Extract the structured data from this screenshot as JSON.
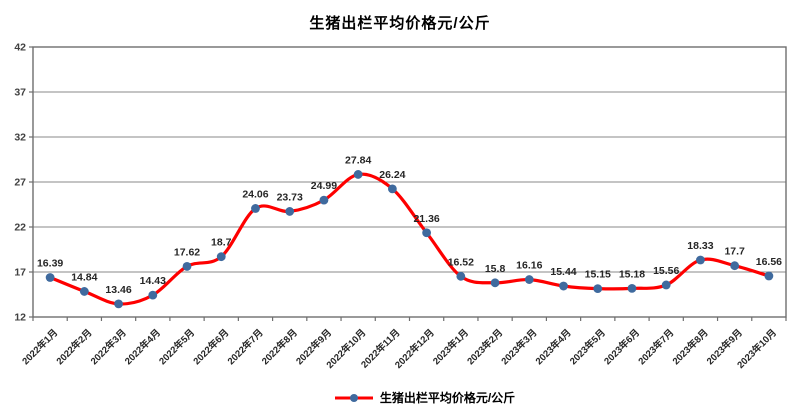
{
  "title": "生猪出栏平均价格元/公斤",
  "legend": {
    "label": "生猪出栏平均价格元/公斤"
  },
  "chart_data": {
    "type": "line",
    "title": "生猪出栏平均价格元/公斤",
    "categories": [
      "2022年1月",
      "2022年2月",
      "2022年3月",
      "2022年4月",
      "2022年5月",
      "2022年6月",
      "2022年7月",
      "2022年8月",
      "2022年9月",
      "2022年10月",
      "2022年11月",
      "2022年12月",
      "2023年1月",
      "2023年2月",
      "2023年3月",
      "2023年4月",
      "2023年5月",
      "2023年6月",
      "2023年7月",
      "2023年8月",
      "2023年9月",
      "2023年10月"
    ],
    "series": [
      {
        "name": "生猪出栏平均价格元/公斤",
        "values": [
          16.39,
          14.84,
          13.46,
          14.43,
          17.62,
          18.7,
          24.06,
          23.73,
          24.99,
          27.84,
          26.24,
          21.36,
          16.52,
          15.8,
          16.16,
          15.44,
          15.15,
          15.18,
          15.56,
          18.33,
          17.7,
          16.56
        ]
      }
    ],
    "data_labels": [
      "16.39",
      "14.84",
      "13.46",
      "14.43",
      "17.62",
      "18.7",
      "24.06",
      "23.73",
      "24.99",
      "27.84",
      "26.24",
      "21.36",
      "16.52",
      "15.8",
      "16.16",
      "15.44",
      "15.15",
      "15.18",
      "15.56",
      "18.33",
      "17.7",
      "16.56"
    ],
    "ylim": [
      12,
      42
    ],
    "yticks": [
      12,
      17,
      22,
      27,
      32,
      37,
      42
    ],
    "grid": true,
    "smooth": true,
    "legend_position": "bottom",
    "line_color": "#fe0000",
    "marker_color": "#3f6a9e",
    "grid_color": "#898989",
    "axis_color": "#6e6e6e",
    "label_color": "#262626",
    "tick_label_color": "#404040"
  }
}
